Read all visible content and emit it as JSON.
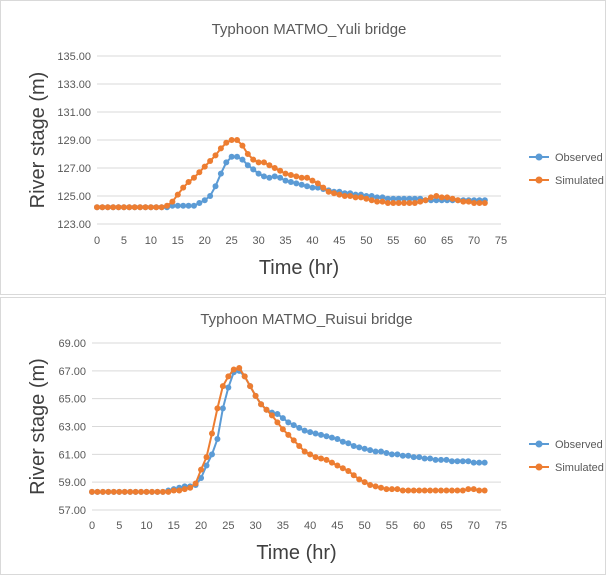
{
  "chart_data": [
    {
      "type": "line",
      "title": "Typhoon MATMO_Yuli bridge",
      "xlabel": "Time (hr)",
      "ylabel": "River stage (m)",
      "xlim": [
        0,
        75
      ],
      "ylim": [
        123.0,
        135.0
      ],
      "xticks": [
        "0",
        "5",
        "10",
        "15",
        "20",
        "25",
        "30",
        "35",
        "40",
        "45",
        "50",
        "55",
        "60",
        "65",
        "70",
        "75"
      ],
      "yticks": [
        "123.00",
        "125.00",
        "127.00",
        "129.00",
        "131.00",
        "133.00",
        "135.00"
      ],
      "grid": "horizontal",
      "legend": "right",
      "x": [
        0,
        1,
        2,
        3,
        4,
        5,
        6,
        7,
        8,
        9,
        10,
        11,
        12,
        13,
        14,
        15,
        16,
        17,
        18,
        19,
        20,
        21,
        22,
        23,
        24,
        25,
        26,
        27,
        28,
        29,
        30,
        31,
        32,
        33,
        34,
        35,
        36,
        37,
        38,
        39,
        40,
        41,
        42,
        43,
        44,
        45,
        46,
        47,
        48,
        49,
        50,
        51,
        52,
        53,
        54,
        55,
        56,
        57,
        58,
        59,
        60,
        61,
        62,
        63,
        64,
        65,
        66,
        67,
        68,
        69,
        70,
        71,
        72
      ],
      "series": [
        {
          "name": "Observed",
          "color": "#5b9bd5",
          "values": [
            124.2,
            124.2,
            124.2,
            124.2,
            124.2,
            124.2,
            124.2,
            124.2,
            124.2,
            124.2,
            124.2,
            124.2,
            124.2,
            124.2,
            124.3,
            124.3,
            124.3,
            124.3,
            124.3,
            124.5,
            124.7,
            125.0,
            125.7,
            126.6,
            127.4,
            127.8,
            127.8,
            127.6,
            127.2,
            126.9,
            126.6,
            126.4,
            126.3,
            126.4,
            126.3,
            126.1,
            126.0,
            125.9,
            125.8,
            125.7,
            125.6,
            125.6,
            125.5,
            125.4,
            125.3,
            125.3,
            125.2,
            125.2,
            125.1,
            125.1,
            125.0,
            125.0,
            124.9,
            124.9,
            124.8,
            124.8,
            124.8,
            124.8,
            124.8,
            124.8,
            124.8,
            124.7,
            124.7,
            124.7,
            124.7,
            124.7,
            124.7,
            124.7,
            124.7,
            124.7,
            124.7,
            124.7,
            124.7
          ]
        },
        {
          "name": "Simulated",
          "color": "#ed7d31",
          "values": [
            124.2,
            124.2,
            124.2,
            124.2,
            124.2,
            124.2,
            124.2,
            124.2,
            124.2,
            124.2,
            124.2,
            124.2,
            124.2,
            124.3,
            124.6,
            125.1,
            125.6,
            126.0,
            126.3,
            126.7,
            127.1,
            127.5,
            127.9,
            128.4,
            128.8,
            129.0,
            129.0,
            128.6,
            128.0,
            127.6,
            127.4,
            127.4,
            127.2,
            127.0,
            126.8,
            126.6,
            126.5,
            126.4,
            126.3,
            126.3,
            126.1,
            125.9,
            125.6,
            125.3,
            125.2,
            125.1,
            125.0,
            125.0,
            124.9,
            124.9,
            124.8,
            124.7,
            124.6,
            124.6,
            124.5,
            124.5,
            124.5,
            124.5,
            124.5,
            124.5,
            124.6,
            124.7,
            124.9,
            125.0,
            124.9,
            124.9,
            124.8,
            124.7,
            124.6,
            124.6,
            124.5,
            124.5,
            124.5
          ]
        }
      ]
    },
    {
      "type": "line",
      "title": "Typhoon MATMO_Ruisui bridge",
      "xlabel": "Time (hr)",
      "ylabel": "River stage (m)",
      "xlim": [
        0,
        75
      ],
      "ylim": [
        57.0,
        69.0
      ],
      "xticks": [
        "0",
        "5",
        "10",
        "15",
        "20",
        "25",
        "30",
        "35",
        "40",
        "45",
        "50",
        "55",
        "60",
        "65",
        "70",
        "75"
      ],
      "yticks": [
        "57.00",
        "59.00",
        "61.00",
        "63.00",
        "65.00",
        "67.00",
        "69.00"
      ],
      "grid": "horizontal",
      "legend": "right",
      "x": [
        0,
        1,
        2,
        3,
        4,
        5,
        6,
        7,
        8,
        9,
        10,
        11,
        12,
        13,
        14,
        15,
        16,
        17,
        18,
        19,
        20,
        21,
        22,
        23,
        24,
        25,
        26,
        27,
        28,
        29,
        30,
        31,
        32,
        33,
        34,
        35,
        36,
        37,
        38,
        39,
        40,
        41,
        42,
        43,
        44,
        45,
        46,
        47,
        48,
        49,
        50,
        51,
        52,
        53,
        54,
        55,
        56,
        57,
        58,
        59,
        60,
        61,
        62,
        63,
        64,
        65,
        66,
        67,
        68,
        69,
        70,
        71,
        72
      ],
      "series": [
        {
          "name": "Observed",
          "color": "#5b9bd5",
          "values": [
            58.3,
            58.3,
            58.3,
            58.3,
            58.3,
            58.3,
            58.3,
            58.3,
            58.3,
            58.3,
            58.3,
            58.3,
            58.3,
            58.3,
            58.4,
            58.5,
            58.6,
            58.7,
            58.7,
            58.8,
            59.3,
            60.2,
            61.0,
            62.1,
            64.3,
            65.8,
            66.9,
            67.0,
            66.6,
            65.9,
            65.2,
            64.6,
            64.2,
            64.0,
            63.9,
            63.6,
            63.3,
            63.1,
            62.9,
            62.7,
            62.6,
            62.5,
            62.4,
            62.3,
            62.2,
            62.1,
            61.9,
            61.8,
            61.6,
            61.5,
            61.4,
            61.3,
            61.2,
            61.2,
            61.1,
            61.0,
            61.0,
            60.9,
            60.9,
            60.8,
            60.8,
            60.7,
            60.7,
            60.6,
            60.6,
            60.6,
            60.5,
            60.5,
            60.5,
            60.5,
            60.4,
            60.4,
            60.4
          ]
        },
        {
          "name": "Simulated",
          "color": "#ed7d31",
          "values": [
            58.3,
            58.3,
            58.3,
            58.3,
            58.3,
            58.3,
            58.3,
            58.3,
            58.3,
            58.3,
            58.3,
            58.3,
            58.3,
            58.3,
            58.3,
            58.4,
            58.4,
            58.5,
            58.6,
            58.9,
            59.9,
            60.8,
            62.5,
            64.3,
            65.9,
            66.6,
            67.1,
            67.2,
            66.6,
            65.9,
            65.2,
            64.6,
            64.2,
            63.8,
            63.3,
            62.8,
            62.4,
            62.0,
            61.6,
            61.2,
            61.0,
            60.8,
            60.7,
            60.6,
            60.4,
            60.2,
            60.0,
            59.8,
            59.5,
            59.2,
            59.0,
            58.8,
            58.7,
            58.6,
            58.5,
            58.5,
            58.5,
            58.4,
            58.4,
            58.4,
            58.4,
            58.4,
            58.4,
            58.4,
            58.4,
            58.4,
            58.4,
            58.4,
            58.4,
            58.5,
            58.5,
            58.4,
            58.4
          ]
        }
      ]
    }
  ]
}
